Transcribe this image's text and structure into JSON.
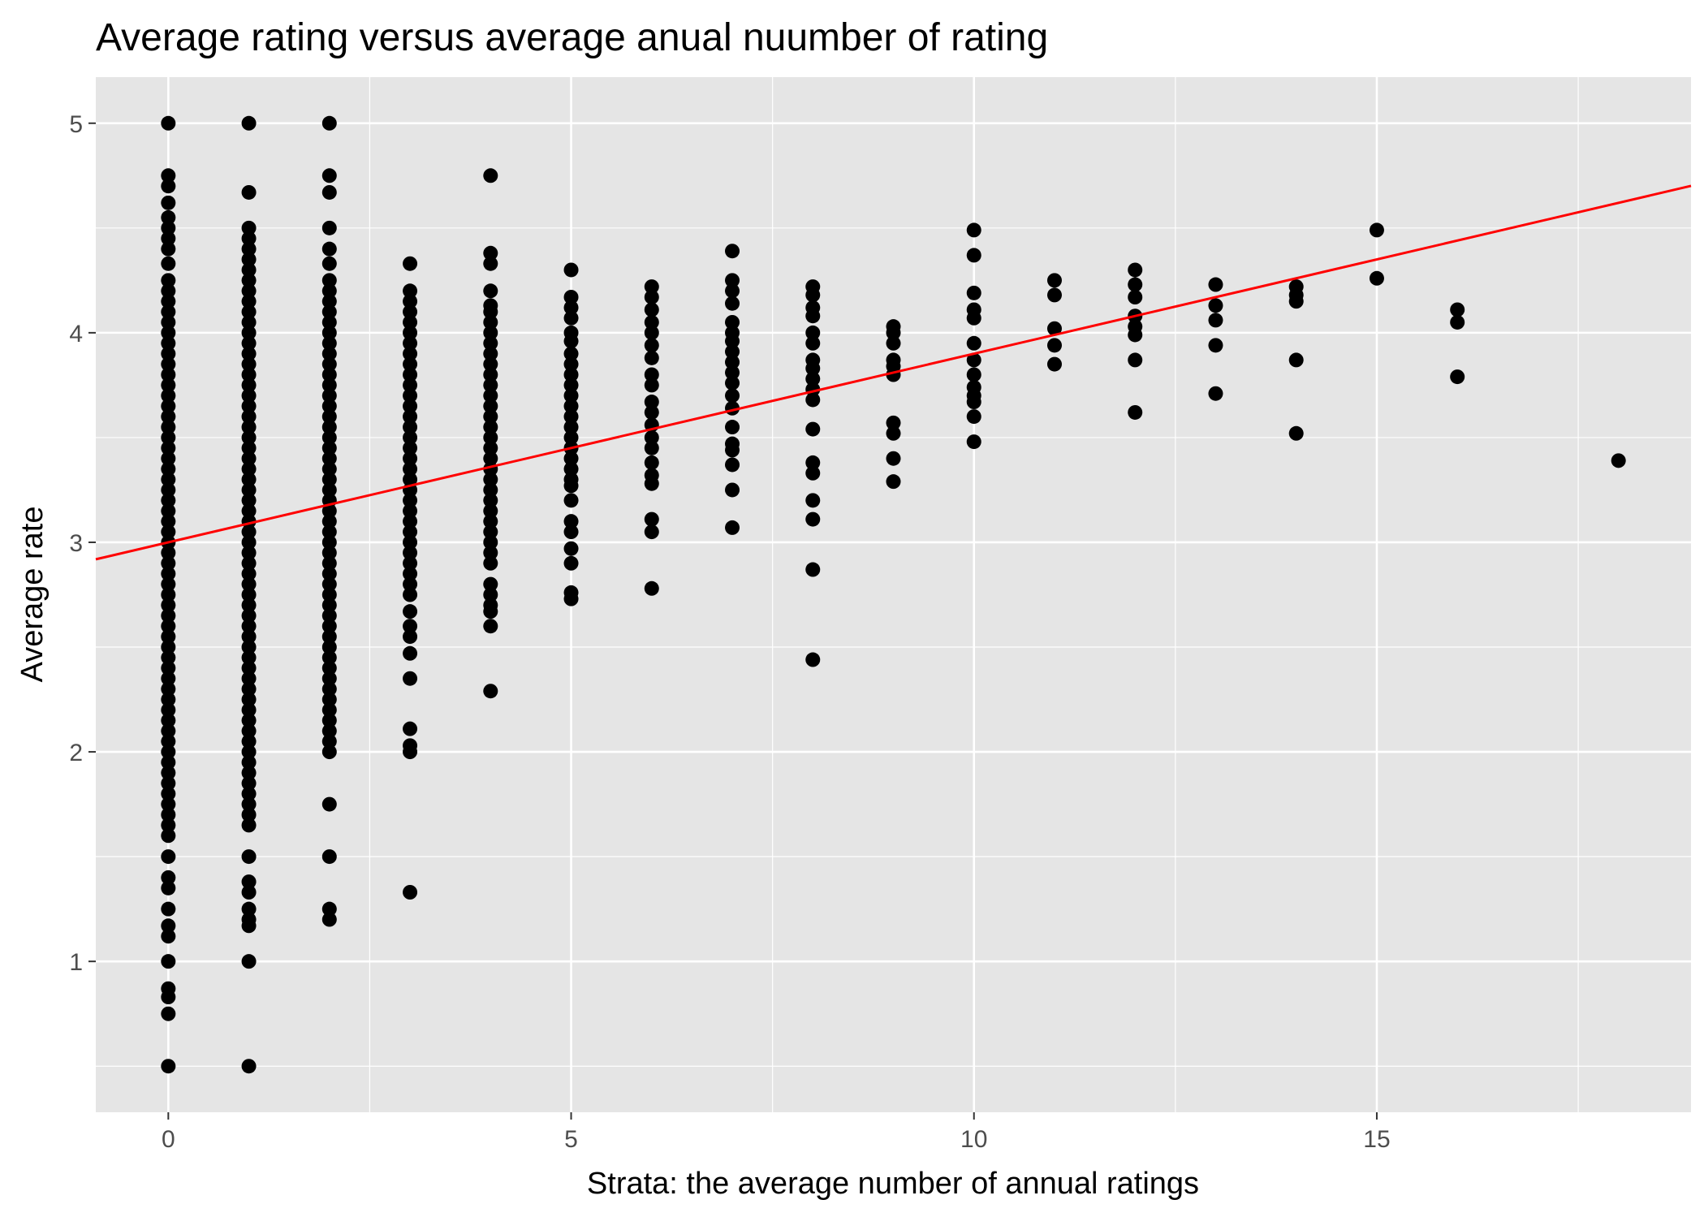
{
  "chart_data": {
    "type": "scatter",
    "title": "Average rating versus average anual nuumber of rating",
    "xlabel": "Strata: the average number of annual ratings",
    "ylabel": "Average rate",
    "xlim": [
      -0.9,
      18.9
    ],
    "ylim": [
      0.28,
      5.22
    ],
    "x_ticks": [
      0,
      5,
      10,
      15
    ],
    "y_ticks": [
      1,
      2,
      3,
      4,
      5
    ],
    "grid": true,
    "legend": "none",
    "colors": {
      "panel": "#E5E5E5",
      "grid": "#FFFFFF",
      "points": "#000000",
      "fit_line": "#FF0000"
    },
    "series": [
      {
        "values_by_x": [
          {
            "x": 0,
            "y": [
              5.0,
              4.75,
              4.7,
              4.62,
              4.55,
              4.5,
              4.45,
              4.4,
              4.33,
              4.25,
              4.2,
              4.15,
              4.1,
              4.05,
              4.0,
              3.95,
              3.9,
              3.85,
              3.8,
              3.75,
              3.7,
              3.65,
              3.6,
              3.55,
              3.5,
              3.45,
              3.4,
              3.35,
              3.3,
              3.25,
              3.2,
              3.15,
              3.1,
              3.05,
              3.0,
              2.95,
              2.9,
              2.85,
              2.8,
              2.75,
              2.7,
              2.65,
              2.6,
              2.55,
              2.5,
              2.45,
              2.4,
              2.35,
              2.3,
              2.25,
              2.2,
              2.15,
              2.1,
              2.05,
              2.0,
              1.95,
              1.9,
              1.85,
              1.8,
              1.75,
              1.7,
              1.65,
              1.6,
              1.5,
              1.4,
              1.35,
              1.25,
              1.17,
              1.12,
              1.0,
              0.87,
              0.83,
              0.75,
              0.5
            ]
          },
          {
            "x": 1,
            "y": [
              5.0,
              4.67,
              4.5,
              4.45,
              4.4,
              4.35,
              4.3,
              4.25,
              4.2,
              4.15,
              4.1,
              4.05,
              4.0,
              3.95,
              3.9,
              3.85,
              3.8,
              3.75,
              3.7,
              3.65,
              3.6,
              3.55,
              3.5,
              3.45,
              3.4,
              3.35,
              3.3,
              3.25,
              3.2,
              3.15,
              3.1,
              3.05,
              3.0,
              2.95,
              2.9,
              2.85,
              2.8,
              2.75,
              2.7,
              2.65,
              2.6,
              2.55,
              2.5,
              2.45,
              2.4,
              2.35,
              2.3,
              2.25,
              2.2,
              2.15,
              2.1,
              2.05,
              2.0,
              1.95,
              1.9,
              1.85,
              1.8,
              1.75,
              1.7,
              1.65,
              1.5,
              1.38,
              1.33,
              1.25,
              1.2,
              1.17,
              1.0,
              0.5
            ]
          },
          {
            "x": 2,
            "y": [
              5.0,
              4.75,
              4.67,
              4.5,
              4.4,
              4.33,
              4.25,
              4.2,
              4.15,
              4.1,
              4.05,
              4.0,
              3.95,
              3.9,
              3.85,
              3.8,
              3.75,
              3.7,
              3.65,
              3.6,
              3.55,
              3.5,
              3.45,
              3.4,
              3.35,
              3.3,
              3.25,
              3.2,
              3.15,
              3.1,
              3.05,
              3.0,
              2.95,
              2.9,
              2.85,
              2.8,
              2.75,
              2.7,
              2.65,
              2.6,
              2.55,
              2.5,
              2.45,
              2.4,
              2.35,
              2.3,
              2.25,
              2.2,
              2.15,
              2.1,
              2.05,
              2.0,
              1.75,
              1.5,
              1.25,
              1.2
            ]
          },
          {
            "x": 3,
            "y": [
              4.33,
              4.2,
              4.15,
              4.1,
              4.05,
              4.0,
              3.95,
              3.9,
              3.85,
              3.8,
              3.75,
              3.7,
              3.65,
              3.6,
              3.55,
              3.5,
              3.45,
              3.4,
              3.35,
              3.3,
              3.25,
              3.2,
              3.15,
              3.1,
              3.05,
              3.0,
              2.95,
              2.9,
              2.85,
              2.8,
              2.75,
              2.67,
              2.6,
              2.55,
              2.47,
              2.35,
              2.11,
              2.03,
              2.0,
              1.33
            ]
          },
          {
            "x": 4,
            "y": [
              4.75,
              4.38,
              4.33,
              4.2,
              4.13,
              4.1,
              4.05,
              4.0,
              3.95,
              3.9,
              3.85,
              3.8,
              3.75,
              3.7,
              3.65,
              3.6,
              3.55,
              3.5,
              3.45,
              3.4,
              3.35,
              3.3,
              3.25,
              3.2,
              3.15,
              3.1,
              3.05,
              3.0,
              2.95,
              2.9,
              2.8,
              2.75,
              2.7,
              2.67,
              2.6,
              2.29
            ]
          },
          {
            "x": 5,
            "y": [
              4.3,
              4.17,
              4.12,
              4.07,
              4.0,
              3.96,
              3.9,
              3.85,
              3.8,
              3.75,
              3.7,
              3.65,
              3.6,
              3.55,
              3.5,
              3.45,
              3.4,
              3.35,
              3.3,
              3.27,
              3.2,
              3.1,
              3.05,
              2.97,
              2.9,
              2.76,
              2.73
            ]
          },
          {
            "x": 6,
            "y": [
              4.22,
              4.17,
              4.11,
              4.05,
              4.0,
              3.94,
              3.88,
              3.8,
              3.75,
              3.67,
              3.62,
              3.56,
              3.5,
              3.45,
              3.38,
              3.32,
              3.28,
              3.11,
              3.05,
              2.78
            ]
          },
          {
            "x": 7,
            "y": [
              4.39,
              4.25,
              4.2,
              4.14,
              4.05,
              4.0,
              3.96,
              3.91,
              3.86,
              3.81,
              3.76,
              3.7,
              3.64,
              3.55,
              3.47,
              3.44,
              3.37,
              3.25,
              3.07
            ]
          },
          {
            "x": 8,
            "y": [
              4.22,
              4.18,
              4.12,
              4.08,
              4.0,
              3.95,
              3.87,
              3.83,
              3.78,
              3.73,
              3.68,
              3.54,
              3.38,
              3.33,
              3.2,
              3.11,
              2.87,
              2.44
            ]
          },
          {
            "x": 9,
            "y": [
              4.03,
              4.0,
              3.95,
              3.87,
              3.84,
              3.8,
              3.57,
              3.52,
              3.4,
              3.29
            ]
          },
          {
            "x": 10,
            "y": [
              4.49,
              4.37,
              4.19,
              4.11,
              4.07,
              3.95,
              3.87,
              3.8,
              3.74,
              3.7,
              3.67,
              3.6,
              3.48
            ]
          },
          {
            "x": 11,
            "y": [
              4.25,
              4.18,
              4.02,
              3.94,
              3.85
            ]
          },
          {
            "x": 12,
            "y": [
              4.3,
              4.23,
              4.17,
              4.08,
              4.03,
              3.99,
              3.87,
              3.62
            ]
          },
          {
            "x": 13,
            "y": [
              4.23,
              4.13,
              4.06,
              3.94,
              3.71
            ]
          },
          {
            "x": 14,
            "y": [
              4.22,
              4.18,
              4.15,
              3.87,
              3.52
            ]
          },
          {
            "x": 15,
            "y": [
              4.49,
              4.26
            ]
          },
          {
            "x": 16,
            "y": [
              4.11,
              4.05,
              3.79
            ]
          },
          {
            "x": 18,
            "y": [
              3.39
            ]
          }
        ]
      }
    ],
    "fit_line": {
      "intercept": 3.0,
      "slope": 0.09
    }
  }
}
